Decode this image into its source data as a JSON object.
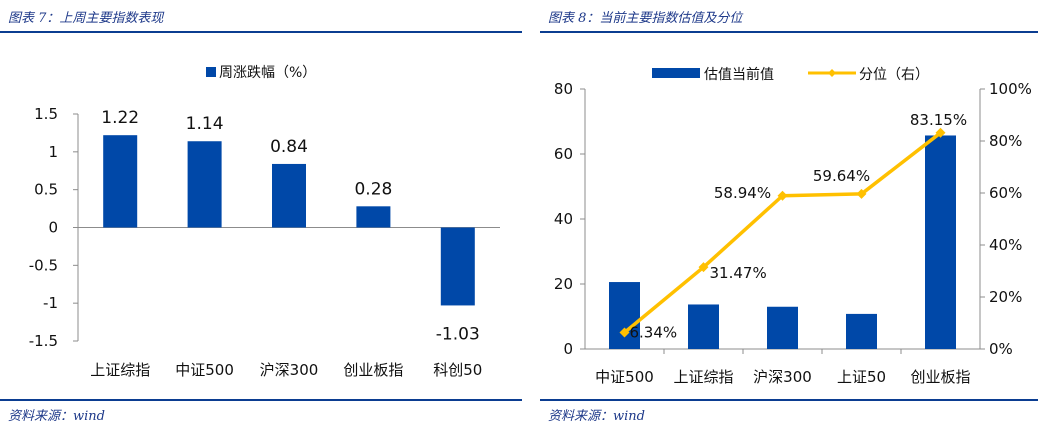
{
  "colors": {
    "bar": "#0048a8",
    "line": "#ffc000",
    "header": "#1f3a8a",
    "rule": "#0b3d91"
  },
  "chart_data": [
    {
      "type": "bar",
      "panel_title": "图表 7：上周主要指数表现",
      "source": "资料来源：wind",
      "legend": [
        "周涨跌幅（%）"
      ],
      "categories": [
        "上证综指",
        "中证500",
        "沪深300",
        "创业板指",
        "科创50"
      ],
      "series": [
        {
          "name": "周涨跌幅（%）",
          "values": [
            1.22,
            1.14,
            0.84,
            0.28,
            -1.03
          ]
        }
      ],
      "data_labels": [
        "1.22",
        "1.14",
        "0.84",
        "0.28",
        "-1.03"
      ],
      "ylim": [
        -1.5,
        1.5
      ],
      "yticks": [
        "-1.5",
        "-1",
        "-0.5",
        "0",
        "0.5",
        "1",
        "1.5"
      ]
    },
    {
      "type": "bar+line",
      "panel_title": "图表 8：当前主要指数估值及分位",
      "source": "资料来源：wind",
      "legend": [
        "估值当前值",
        "分位（右）"
      ],
      "categories": [
        "中证500",
        "上证综指",
        "沪深300",
        "上证50",
        "创业板指"
      ],
      "series": [
        {
          "name": "估值当前值",
          "axis": "left",
          "values": [
            20.6,
            13.7,
            13.0,
            10.8,
            65.7
          ]
        },
        {
          "name": "分位（右）",
          "axis": "right",
          "values": [
            6.34,
            31.47,
            58.94,
            59.64,
            83.15
          ]
        }
      ],
      "data_labels": [
        "6.34%",
        "31.47%",
        "58.94%",
        "59.64%",
        "83.15%"
      ],
      "ylim": [
        0,
        80
      ],
      "yticks": [
        "0",
        "20",
        "40",
        "60",
        "80"
      ],
      "y2lim": [
        0,
        100
      ],
      "y2ticks": [
        "0%",
        "20%",
        "40%",
        "60%",
        "80%",
        "100%"
      ]
    }
  ]
}
